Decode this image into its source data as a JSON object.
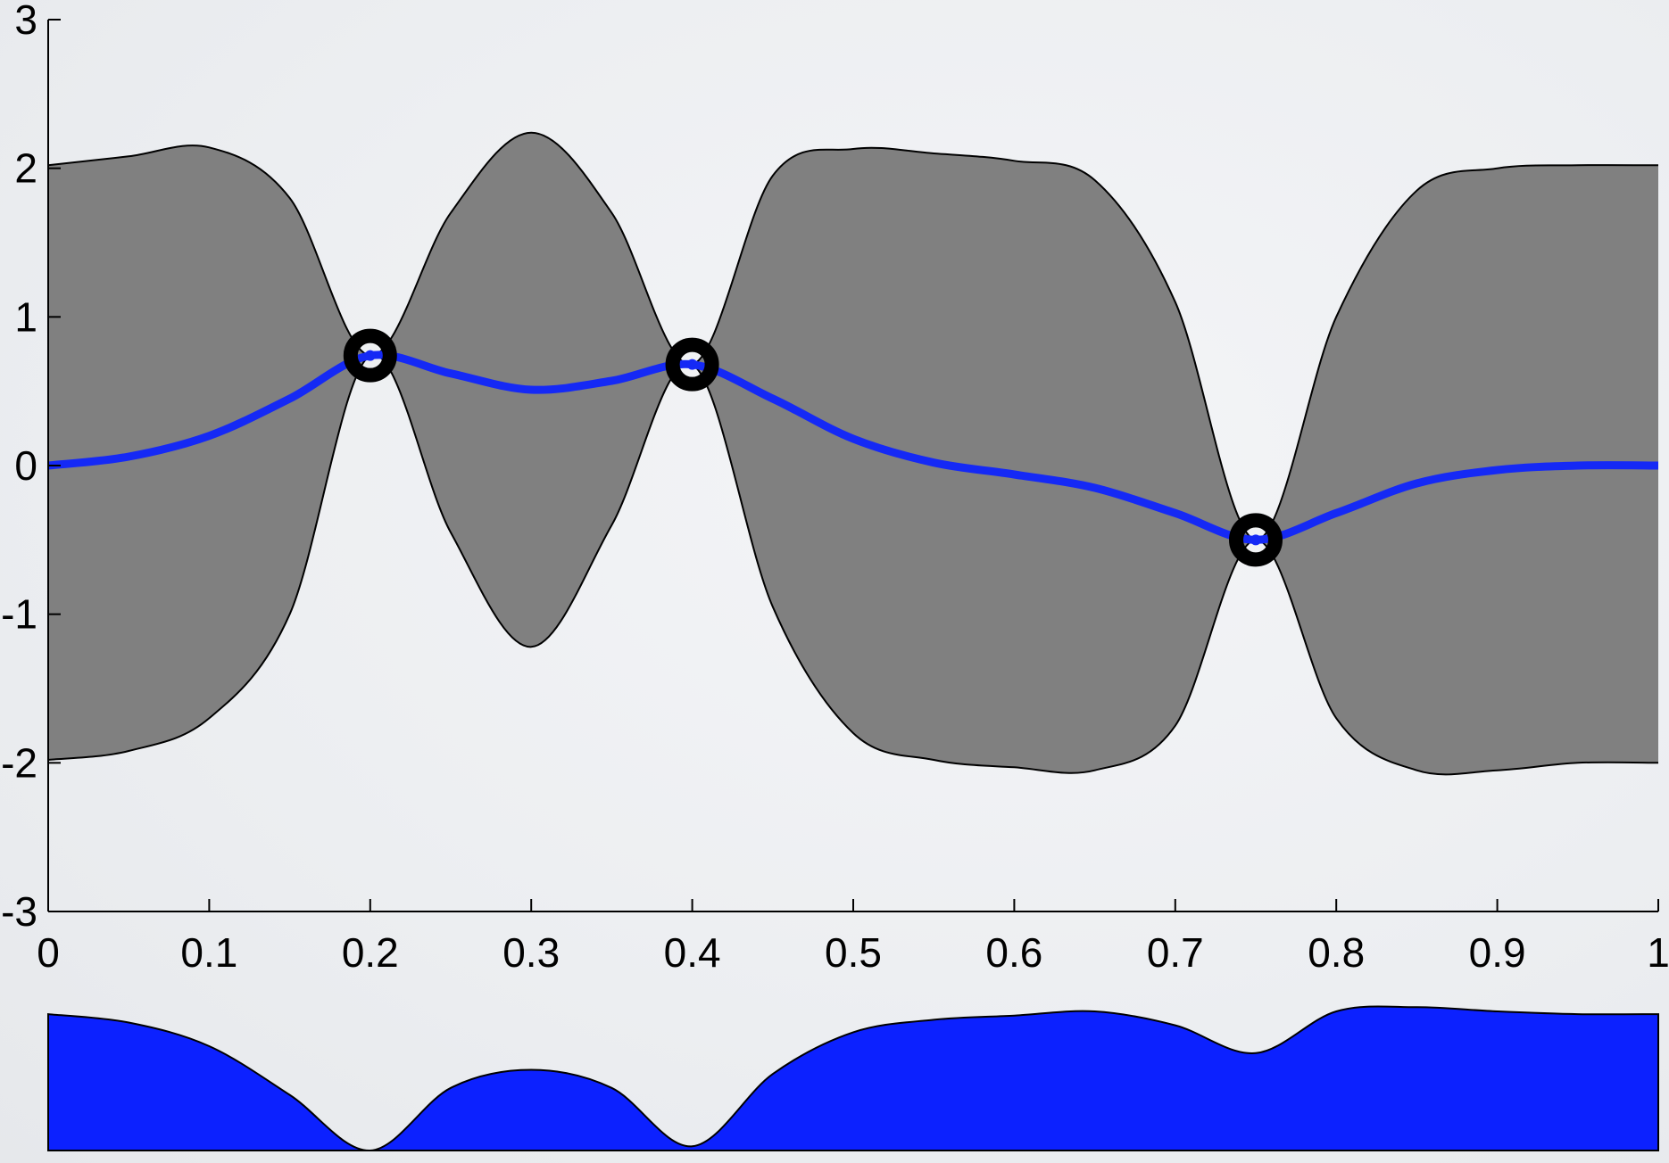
{
  "chart_data": [
    {
      "type": "line",
      "title": "",
      "xlabel": "",
      "ylabel": "",
      "xlim": [
        0,
        1
      ],
      "ylim": [
        -3,
        3
      ],
      "xticks": [
        "0",
        "0.1",
        "0.2",
        "0.3",
        "0.4",
        "0.5",
        "0.6",
        "0.7",
        "0.8",
        "0.9",
        "1"
      ],
      "yticks": [
        "3",
        "2",
        "1",
        "0",
        "-1",
        "-2",
        "-3"
      ],
      "grid": false,
      "colors": {
        "band_fill": "#808080",
        "band_edge": "#000000",
        "mean_line": "#1529f5",
        "observation_ring": "#000000",
        "observation_center": "#1529f5"
      },
      "observations": [
        {
          "x": 0.2,
          "y": 0.74
        },
        {
          "x": 0.4,
          "y": 0.68
        },
        {
          "x": 0.75,
          "y": -0.5
        }
      ],
      "x": [
        0,
        0.05,
        0.1,
        0.15,
        0.2,
        0.25,
        0.3,
        0.35,
        0.4,
        0.45,
        0.5,
        0.55,
        0.6,
        0.65,
        0.7,
        0.75,
        0.8,
        0.85,
        0.9,
        0.95,
        1.0
      ],
      "series": [
        {
          "role": "mean",
          "values": [
            0.0,
            0.06,
            0.2,
            0.45,
            0.74,
            0.62,
            0.51,
            0.57,
            0.68,
            0.45,
            0.18,
            0.02,
            -0.06,
            -0.15,
            -0.32,
            -0.5,
            -0.32,
            -0.12,
            -0.03,
            0.0,
            0.0
          ]
        },
        {
          "role": "upper",
          "values": [
            2.02,
            2.08,
            2.14,
            1.8,
            0.74,
            1.7,
            2.24,
            1.7,
            0.68,
            1.95,
            2.13,
            2.1,
            2.05,
            1.92,
            1.1,
            -0.5,
            1.0,
            1.85,
            2.0,
            2.02,
            2.02
          ]
        },
        {
          "role": "lower",
          "values": [
            -1.98,
            -1.92,
            -1.7,
            -1.0,
            0.74,
            -0.45,
            -1.22,
            -0.4,
            0.68,
            -0.95,
            -1.8,
            -1.98,
            -2.03,
            -2.05,
            -1.75,
            -0.5,
            -1.7,
            -2.05,
            -2.05,
            -2.0,
            -2.0
          ]
        }
      ]
    },
    {
      "type": "area",
      "title": "",
      "xlim": [
        0,
        1
      ],
      "ylim": [
        0,
        1
      ],
      "colors": {
        "fill": "#0c21ff",
        "edge": "#000000"
      },
      "x": [
        0,
        0.05,
        0.1,
        0.15,
        0.2,
        0.25,
        0.3,
        0.35,
        0.4,
        0.45,
        0.5,
        0.55,
        0.6,
        0.65,
        0.7,
        0.75,
        0.8,
        0.85,
        0.9,
        0.95,
        1.0
      ],
      "values": [
        0.98,
        0.92,
        0.75,
        0.4,
        0.0,
        0.45,
        0.58,
        0.45,
        0.03,
        0.55,
        0.85,
        0.94,
        0.97,
        1.0,
        0.9,
        0.7,
        1.0,
        1.03,
        1.0,
        0.98,
        0.98
      ]
    }
  ]
}
